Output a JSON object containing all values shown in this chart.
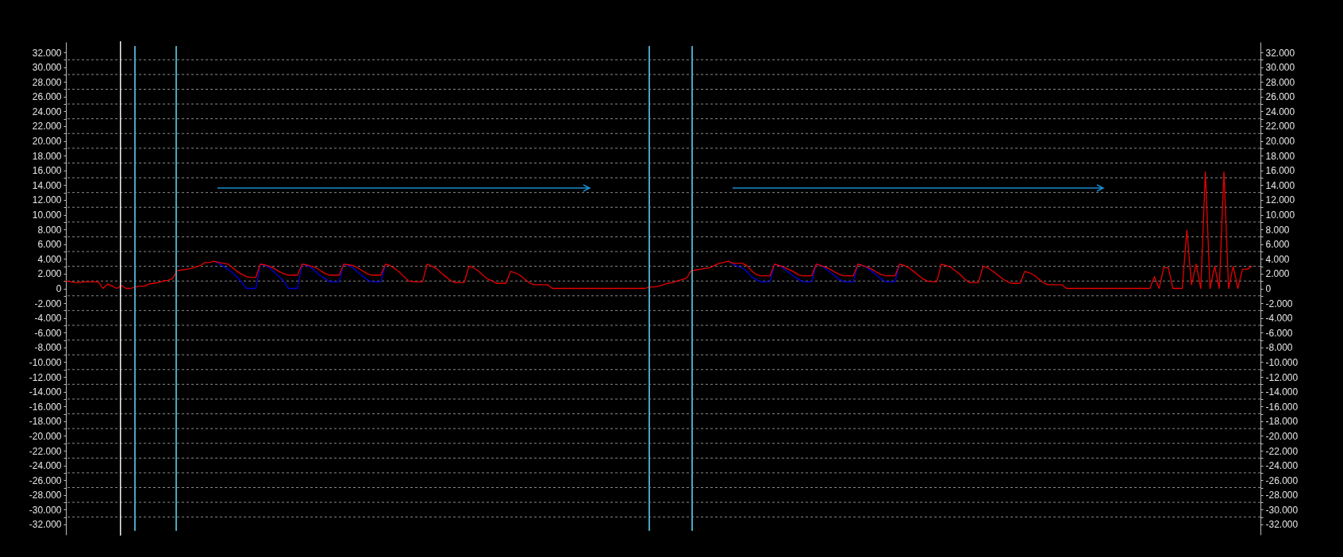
{
  "chart_data": {
    "type": "line",
    "categories": [
      null,
      null,
      null,
      null,
      null,
      null,
      null,
      null,
      null,
      null,
      null,
      null,
      null,
      null,
      null,
      null,
      null,
      null,
      null,
      null,
      null,
      null,
      null,
      null,
      null,
      null,
      null,
      null,
      null,
      null,
      null,
      null,
      null,
      null,
      null,
      null,
      null,
      null,
      null,
      null,
      null,
      null,
      null,
      null,
      null,
      null,
      null,
      null,
      null,
      null,
      null,
      null,
      null,
      null,
      null,
      null,
      null,
      null,
      null,
      null,
      null,
      null,
      null,
      null,
      null,
      null,
      null,
      null,
      null,
      null,
      null,
      null,
      null,
      null,
      null,
      null,
      null,
      null,
      null,
      null,
      null,
      null,
      null,
      null,
      null,
      null,
      null,
      null,
      null,
      null,
      null,
      null,
      null,
      null,
      null,
      null,
      null,
      null,
      null,
      null,
      null,
      null,
      null,
      null,
      null,
      null,
      null,
      null,
      null,
      null,
      null,
      null,
      null,
      null,
      null,
      null,
      null,
      null,
      null,
      null,
      null,
      null,
      null,
      null,
      null,
      null,
      null,
      null,
      null,
      null,
      null,
      null,
      null,
      null,
      null,
      null,
      null,
      null,
      null,
      null,
      null,
      null,
      null,
      null,
      null,
      null,
      null,
      null,
      null,
      null,
      null,
      null,
      null,
      null,
      null,
      null,
      null,
      null,
      null,
      null,
      null,
      null,
      null,
      null,
      null,
      null,
      null,
      null,
      null,
      null,
      null,
      null,
      null,
      null,
      null,
      null,
      null,
      null,
      null,
      null,
      null,
      null,
      null,
      null,
      null,
      null,
      null,
      null,
      null,
      null,
      null,
      null,
      null,
      null,
      null,
      null,
      null,
      null,
      null,
      null,
      null,
      null,
      null,
      null,
      null,
      null,
      null,
      null,
      null,
      null,
      null,
      null,
      null,
      null,
      null,
      null,
      null,
      null,
      null,
      null,
      null,
      null,
      null,
      null,
      null,
      null,
      null,
      null,
      null,
      null,
      null,
      null,
      null,
      null,
      null,
      null,
      null,
      null,
      null,
      null,
      null,
      null,
      null,
      null,
      null,
      null,
      null,
      null,
      null,
      null,
      null,
      null,
      null,
      null,
      null,
      null,
      null
    ],
    "series": [
      {
        "color": "#0000dd",
        "values": [
          null,
          null,
          null,
          null,
          null,
          null,
          null,
          null,
          null,
          null,
          null,
          null,
          null,
          null,
          null,
          null,
          null,
          null,
          null,
          null,
          null,
          null,
          null,
          null,
          null,
          null,
          null,
          null,
          null,
          null,
          null,
          null,
          3700,
          3400,
          3000,
          2600,
          2100,
          1500,
          800,
          0,
          0,
          0,
          3300,
          3100,
          2800,
          2200,
          1600,
          1000,
          0,
          0,
          0,
          3300,
          3100,
          2800,
          2200,
          1700,
          1300,
          900,
          900,
          900,
          3300,
          3100,
          2800,
          2200,
          1700,
          1200,
          900,
          900,
          900,
          3300,
          null,
          null,
          null,
          null,
          null,
          null,
          null,
          null,
          null,
          null,
          null,
          null,
          null,
          null,
          null,
          null,
          null,
          null,
          null,
          null,
          null,
          null,
          null,
          null,
          null,
          null,
          null,
          null,
          null,
          null,
          null,
          null,
          null,
          null,
          null,
          null,
          null,
          null,
          null,
          null,
          null,
          null,
          null,
          null,
          null,
          null,
          null,
          null,
          null,
          null,
          null,
          null,
          null,
          null,
          null,
          null,
          null,
          null,
          null,
          null,
          null,
          null,
          null,
          null,
          null,
          null,
          null,
          null,
          null,
          null,
          null,
          null,
          null,
          3700,
          3300,
          3000,
          2800,
          2300,
          1600,
          1200,
          900,
          900,
          900,
          3300,
          3100,
          2700,
          2200,
          1700,
          1300,
          900,
          900,
          900,
          3300,
          3100,
          2700,
          2200,
          1700,
          1200,
          900,
          900,
          900,
          3300,
          3100,
          2800,
          2300,
          1800,
          1300,
          900,
          900,
          900,
          3300,
          null,
          null,
          null,
          null,
          null,
          null,
          null,
          null,
          null,
          null,
          null,
          null,
          null,
          null,
          null,
          null,
          null,
          null,
          null,
          null,
          null,
          null,
          null,
          null,
          null,
          null,
          null,
          null,
          null,
          null,
          null,
          null,
          null,
          null,
          null,
          null,
          null,
          null,
          null,
          null,
          null,
          null,
          null,
          null,
          null,
          null,
          null,
          null,
          null,
          null,
          null,
          null,
          null,
          null,
          null,
          null,
          null,
          null,
          null,
          null,
          null,
          null,
          null,
          null,
          null,
          null,
          null,
          null,
          null,
          null,
          null,
          null,
          null,
          null,
          null,
          null
        ]
      },
      {
        "color": "#e80000",
        "values": [
          1000,
          900,
          800,
          800,
          900,
          900,
          900,
          900,
          0,
          600,
          300,
          0,
          400,
          0,
          0,
          200,
          300,
          300,
          600,
          700,
          800,
          1000,
          1100,
          1300,
          2400,
          2500,
          2600,
          2700,
          2900,
          3100,
          3500,
          3500,
          3700,
          3500,
          3400,
          3300,
          2800,
          2300,
          1900,
          1600,
          1500,
          1500,
          3300,
          3200,
          3000,
          2700,
          2300,
          2000,
          1800,
          1800,
          1800,
          3300,
          3200,
          3000,
          2800,
          2400,
          2000,
          1800,
          1800,
          1800,
          3300,
          3200,
          3100,
          2800,
          2400,
          2000,
          1800,
          1800,
          1800,
          3300,
          3100,
          2700,
          2200,
          1600,
          1000,
          900,
          900,
          900,
          3300,
          3000,
          2700,
          2100,
          1600,
          1100,
          800,
          800,
          800,
          3000,
          2800,
          2400,
          1800,
          1300,
          1000,
          700,
          700,
          700,
          2300,
          2100,
          1800,
          1300,
          800,
          500,
          500,
          500,
          500,
          0,
          0,
          0,
          0,
          0,
          0,
          0,
          0,
          0,
          0,
          0,
          0,
          0,
          0,
          0,
          0,
          0,
          0,
          0,
          0,
          0,
          200,
          200,
          300,
          500,
          700,
          800,
          1000,
          1200,
          1400,
          2400,
          2500,
          2600,
          2700,
          2800,
          3100,
          3400,
          3500,
          3700,
          3400,
          3400,
          3400,
          3100,
          2400,
          1900,
          1700,
          1700,
          1700,
          3300,
          3100,
          2900,
          2600,
          2300,
          1900,
          1700,
          1700,
          1700,
          3300,
          3100,
          2900,
          2600,
          2200,
          1900,
          1700,
          1700,
          1700,
          3300,
          3100,
          2900,
          2600,
          2200,
          1900,
          1700,
          1700,
          1700,
          3300,
          3100,
          2800,
          2300,
          1800,
          1300,
          1000,
          900,
          900,
          3300,
          3100,
          2900,
          2400,
          1900,
          1300,
          800,
          800,
          800,
          3000,
          2800,
          2400,
          1900,
          1400,
          1000,
          700,
          700,
          700,
          2300,
          2100,
          1800,
          1300,
          800,
          500,
          500,
          500,
          500,
          0,
          0,
          0,
          0,
          0,
          0,
          0,
          0,
          0,
          0,
          0,
          0,
          0,
          0,
          0,
          0,
          0,
          0,
          0,
          1600,
          0,
          2800,
          2800,
          0,
          0,
          0,
          7900,
          500,
          3300,
          0,
          15800,
          0,
          3000,
          0,
          15800,
          0,
          3000,
          0,
          2600,
          2600,
          3000
        ]
      }
    ],
    "ylim": [
      -33400,
      33400
    ],
    "yticks": [
      {
        "value": 32000,
        "label": "32.000"
      },
      {
        "value": 31000,
        "label": null
      },
      {
        "value": 30000,
        "label": "30.000"
      },
      {
        "value": 29000,
        "label": null
      },
      {
        "value": 28000,
        "label": "28.000"
      },
      {
        "value": 27000,
        "label": null
      },
      {
        "value": 26000,
        "label": "26.000"
      },
      {
        "value": 25000,
        "label": null
      },
      {
        "value": 24000,
        "label": "24.000"
      },
      {
        "value": 23000,
        "label": null
      },
      {
        "value": 22000,
        "label": "22.000"
      },
      {
        "value": 21000,
        "label": null
      },
      {
        "value": 20000,
        "label": "20.000"
      },
      {
        "value": 19000,
        "label": null
      },
      {
        "value": 18000,
        "label": "18.000"
      },
      {
        "value": 17000,
        "label": null
      },
      {
        "value": 16000,
        "label": "16.000"
      },
      {
        "value": 15000,
        "label": null
      },
      {
        "value": 14000,
        "label": "14.000"
      },
      {
        "value": 13000,
        "label": null
      },
      {
        "value": 12000,
        "label": "12.000"
      },
      {
        "value": 11000,
        "label": null
      },
      {
        "value": 10000,
        "label": "10.000"
      },
      {
        "value": 9000,
        "label": null
      },
      {
        "value": 8000,
        "label": "8.000"
      },
      {
        "value": 7000,
        "label": null
      },
      {
        "value": 6000,
        "label": "6.000"
      },
      {
        "value": 5000,
        "label": null
      },
      {
        "value": 4000,
        "label": "4.000"
      },
      {
        "value": 3000,
        "label": null
      },
      {
        "value": 2000,
        "label": "2.000"
      },
      {
        "value": 1000,
        "label": null
      },
      0,
      {
        "value": -1000,
        "label": null
      },
      {
        "value": -2000,
        "label": "-2.000"
      },
      {
        "value": -3000,
        "label": null
      },
      {
        "value": -4000,
        "label": "-4.000"
      },
      {
        "value": -5000,
        "label": null
      },
      {
        "value": -6000,
        "label": "-6.000"
      },
      {
        "value": -7000,
        "label": null
      },
      {
        "value": -8000,
        "label": "-8.000"
      },
      {
        "value": -9000,
        "label": null
      },
      {
        "value": -10000,
        "label": "-10.000"
      },
      {
        "value": -11000,
        "label": null
      },
      {
        "value": -12000,
        "label": "-12.000"
      },
      {
        "value": -13000,
        "label": null
      },
      {
        "value": -14000,
        "label": "-14.000"
      },
      {
        "value": -15000,
        "label": null
      },
      {
        "value": -16000,
        "label": "-16.000"
      },
      {
        "value": -17000,
        "label": null
      },
      {
        "value": -18000,
        "label": "-18.000"
      },
      {
        "value": -19000,
        "label": null
      },
      {
        "value": -20000,
        "label": "-20.000"
      },
      {
        "value": -21000,
        "label": null
      },
      {
        "value": -22000,
        "label": "-22.000"
      },
      {
        "value": -23000,
        "label": null
      },
      {
        "value": -24000,
        "label": "-24.000"
      },
      {
        "value": -25000,
        "label": null
      },
      {
        "value": -26000,
        "label": "-26.000"
      },
      {
        "value": -27000,
        "label": null
      },
      {
        "value": -28000,
        "label": "-28.000"
      },
      {
        "value": -29000,
        "label": null
      },
      {
        "value": -30000,
        "label": "-30.000"
      },
      {
        "value": -31000,
        "label": null
      },
      {
        "value": -32000,
        "label": "-32.000"
      }
    ],
    "y2lim": [
      -33400,
      33400
    ],
    "y2ticks": [
      {
        "value": 32000,
        "label": "32.000"
      },
      {
        "value": 31000,
        "label": null
      },
      {
        "value": 30000,
        "label": "30.000"
      },
      {
        "value": 29000,
        "label": null
      },
      {
        "value": 28000,
        "label": "28.000"
      },
      {
        "value": 27000,
        "label": null
      },
      {
        "value": 26000,
        "label": "26.000"
      },
      {
        "value": 25000,
        "label": null
      },
      {
        "value": 24000,
        "label": "24.000"
      },
      {
        "value": 23000,
        "label": null
      },
      {
        "value": 22000,
        "label": "22.000"
      },
      {
        "value": 21000,
        "label": null
      },
      {
        "value": 20000,
        "label": "20.000"
      },
      {
        "value": 19000,
        "label": null
      },
      {
        "value": 18000,
        "label": "18.000"
      },
      {
        "value": 17000,
        "label": null
      },
      {
        "value": 16000,
        "label": "16.000"
      },
      {
        "value": 15000,
        "label": null
      },
      {
        "value": 14000,
        "label": "14.000"
      },
      {
        "value": 13000,
        "label": null
      },
      {
        "value": 12000,
        "label": "12.000"
      },
      {
        "value": 11000,
        "label": null
      },
      {
        "value": 10000,
        "label": "10.000"
      },
      {
        "value": 9000,
        "label": null
      },
      {
        "value": 8000,
        "label": "8.000"
      },
      {
        "value": 7000,
        "label": null
      },
      {
        "value": 6000,
        "label": "6.000"
      },
      {
        "value": 5000,
        "label": null
      },
      {
        "value": 4000,
        "label": "4.000"
      },
      {
        "value": 3000,
        "label": null
      },
      {
        "value": 2000,
        "label": "2.000"
      },
      {
        "value": 1000,
        "label": null
      },
      0,
      {
        "value": -1000,
        "label": null
      },
      {
        "value": -2000,
        "label": "-2.000"
      },
      {
        "value": -3000,
        "label": null
      },
      {
        "value": -4000,
        "label": "-4.000"
      },
      {
        "value": -5000,
        "label": null
      },
      {
        "value": -6000,
        "label": "-6.000"
      },
      {
        "value": -7000,
        "label": null
      },
      {
        "value": -8000,
        "label": "-8.000"
      },
      {
        "value": -9000,
        "label": null
      },
      {
        "value": -10000,
        "label": "-10.000"
      },
      {
        "value": -11000,
        "label": null
      },
      {
        "value": -12000,
        "label": "-12.000"
      },
      {
        "value": -13000,
        "label": null
      },
      {
        "value": -14000,
        "label": "-14.000"
      },
      {
        "value": -15000,
        "label": null
      },
      {
        "value": -16000,
        "label": "-16.000"
      },
      {
        "value": -17000,
        "label": null
      },
      {
        "value": -18000,
        "label": "-18.000"
      },
      {
        "value": -19000,
        "label": null
      },
      {
        "value": -20000,
        "label": "-20.000"
      },
      {
        "value": -21000,
        "label": null
      },
      {
        "value": -22000,
        "label": "-22.000"
      },
      {
        "value": -23000,
        "label": null
      },
      {
        "value": -24000,
        "label": "-24.000"
      },
      {
        "value": -25000,
        "label": null
      },
      {
        "value": -26000,
        "label": "-26.000"
      },
      {
        "value": -27000,
        "label": null
      },
      {
        "value": -28000,
        "label": "-28.000"
      },
      {
        "value": -29000,
        "label": null
      },
      {
        "value": -30000,
        "label": "-30.000"
      },
      {
        "value": -31000,
        "label": null
      },
      {
        "value": -32000,
        "label": "-32.000"
      }
    ],
    "grid": "y",
    "tick_labels": "y"
  }
}
